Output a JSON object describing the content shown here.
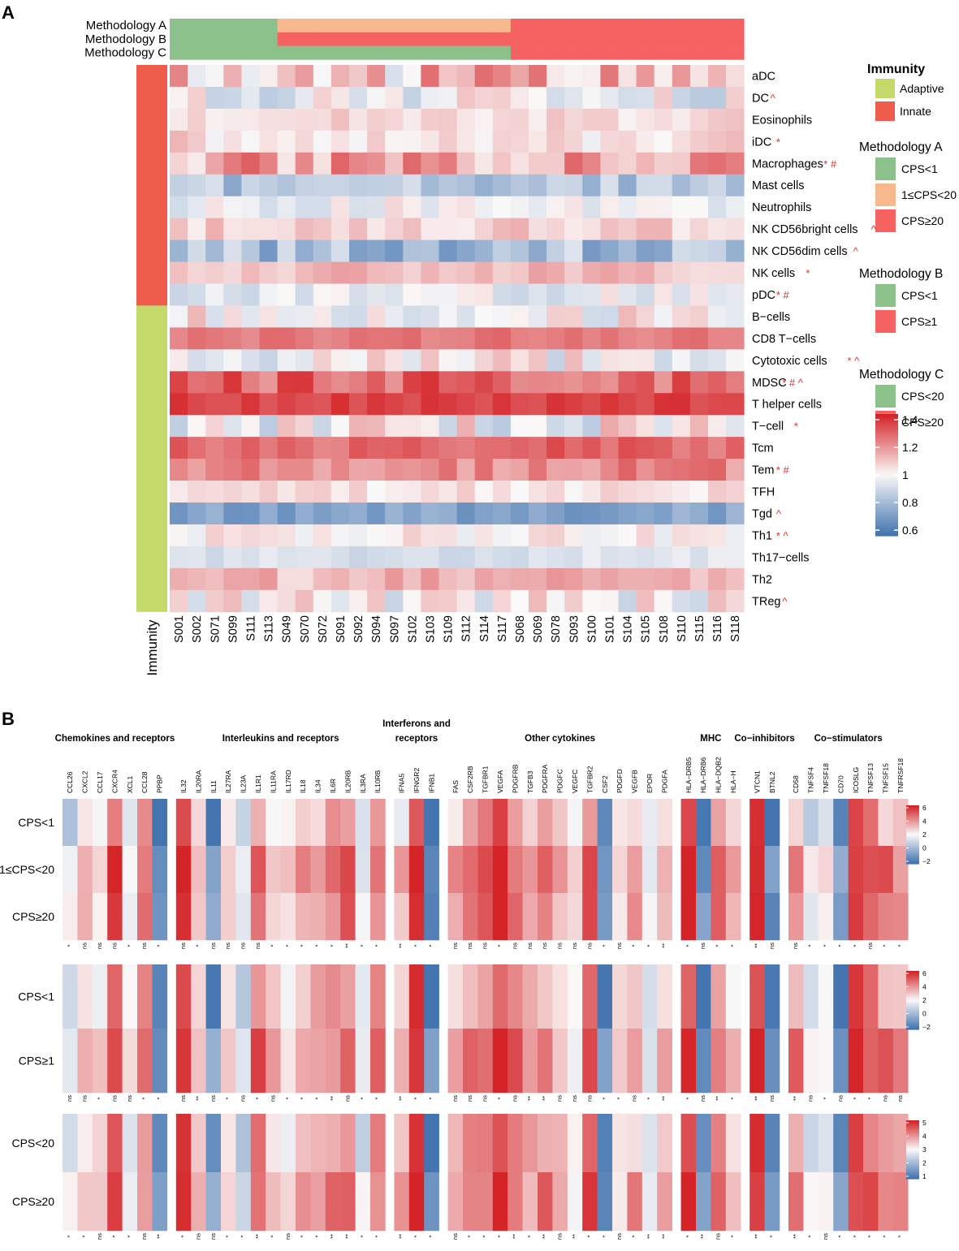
{
  "chart_data": [
    {
      "panel": "A",
      "type": "heatmap",
      "samples": [
        "S001",
        "S002",
        "S071",
        "S099",
        "S111",
        "S113",
        "S049",
        "S070",
        "S072",
        "S091",
        "S092",
        "S094",
        "S097",
        "S102",
        "S103",
        "S109",
        "S112",
        "S114",
        "S117",
        "S068",
        "S069",
        "S078",
        "S093",
        "S100",
        "S101",
        "S104",
        "S105",
        "S108",
        "S110",
        "S115",
        "S116",
        "S118"
      ],
      "annotation_rows": [
        {
          "label": "Methodology A",
          "values": [
            "CPS<1",
            "CPS<1",
            "CPS<1",
            "CPS<1",
            "CPS<1",
            "CPS<1",
            "1≤CPS<20",
            "1≤CPS<20",
            "1≤CPS<20",
            "1≤CPS<20",
            "1≤CPS<20",
            "1≤CPS<20",
            "1≤CPS<20",
            "1≤CPS<20",
            "1≤CPS<20",
            "1≤CPS<20",
            "1≤CPS<20",
            "1≤CPS<20",
            "1≤CPS<20",
            "CPS≥20",
            "CPS≥20",
            "CPS≥20",
            "CPS≥20",
            "CPS≥20",
            "CPS≥20",
            "CPS≥20",
            "CPS≥20",
            "CPS≥20",
            "CPS≥20",
            "CPS≥20",
            "CPS≥20",
            "CPS≥20"
          ]
        },
        {
          "label": "Methodology B",
          "values": [
            "CPS<1",
            "CPS<1",
            "CPS<1",
            "CPS<1",
            "CPS<1",
            "CPS<1",
            "CPS≥1",
            "CPS≥1",
            "CPS≥1",
            "CPS≥1",
            "CPS≥1",
            "CPS≥1",
            "CPS≥1",
            "CPS≥1",
            "CPS≥1",
            "CPS≥1",
            "CPS≥1",
            "CPS≥1",
            "CPS≥1",
            "CPS≥1",
            "CPS≥1",
            "CPS≥1",
            "CPS≥1",
            "CPS≥1",
            "CPS≥1",
            "CPS≥1",
            "CPS≥1",
            "CPS≥1",
            "CPS≥1",
            "CPS≥1",
            "CPS≥1",
            "CPS≥1"
          ]
        },
        {
          "label": "Methodology C",
          "values": [
            "CPS<20",
            "CPS<20",
            "CPS<20",
            "CPS<20",
            "CPS<20",
            "CPS<20",
            "CPS<20",
            "CPS<20",
            "CPS<20",
            "CPS<20",
            "CPS<20",
            "CPS<20",
            "CPS<20",
            "CPS<20",
            "CPS<20",
            "CPS<20",
            "CPS<20",
            "CPS<20",
            "CPS<20",
            "CPS≥20",
            "CPS≥20",
            "CPS≥20",
            "CPS≥20",
            "CPS≥20",
            "CPS≥20",
            "CPS≥20",
            "CPS≥20",
            "CPS≥20",
            "CPS≥20",
            "CPS≥20",
            "CPS≥20",
            "CPS≥20"
          ]
        }
      ],
      "immunity_label": "Immunity",
      "rows": [
        {
          "name": "aDC",
          "immunity": "Innate",
          "marks": "",
          "base": 1.08,
          "amp": 0.18
        },
        {
          "name": "DC",
          "immunity": "Innate",
          "marks": "^",
          "base": 0.98,
          "amp": 0.12
        },
        {
          "name": "Eosinophils",
          "immunity": "Innate",
          "marks": "",
          "base": 1.06,
          "amp": 0.05
        },
        {
          "name": "iDC",
          "immunity": "Innate",
          "marks": "*",
          "base": 1.05,
          "amp": 0.08
        },
        {
          "name": "Macrophages",
          "immunity": "Innate",
          "marks": "* #",
          "base": 1.14,
          "amp": 0.15
        },
        {
          "name": "Mast cells",
          "immunity": "Innate",
          "marks": "",
          "base": 0.84,
          "amp": 0.09
        },
        {
          "name": "Neutrophils",
          "immunity": "Innate",
          "marks": "",
          "base": 0.99,
          "amp": 0.08
        },
        {
          "name": "NK CD56bright cells",
          "immunity": "Innate",
          "marks": "^",
          "base": 1.08,
          "amp": 0.06
        },
        {
          "name": "NK CD56dim cells",
          "immunity": "Innate",
          "marks": "^",
          "base": 0.82,
          "amp": 0.12
        },
        {
          "name": "NK cells",
          "immunity": "Innate",
          "marks": "*",
          "base": 1.11,
          "amp": 0.06
        },
        {
          "name": "pDC",
          "immunity": "Innate",
          "marks": "* #",
          "base": 0.97,
          "amp": 0.08
        },
        {
          "name": "B−cells",
          "immunity": "Adaptive",
          "marks": "",
          "base": 1.02,
          "amp": 0.12
        },
        {
          "name": "CD8 T−cells",
          "immunity": "Adaptive",
          "marks": "",
          "base": 1.24,
          "amp": 0.04
        },
        {
          "name": "Cytotoxic cells",
          "immunity": "Adaptive",
          "marks": "* ^",
          "base": 1.0,
          "amp": 0.12
        },
        {
          "name": "MDSC",
          "immunity": "Adaptive",
          "marks": "* # ^",
          "base": 1.27,
          "amp": 0.1
        },
        {
          "name": "T helper cells",
          "immunity": "Adaptive",
          "marks": "",
          "base": 1.34,
          "amp": 0.04
        },
        {
          "name": "T−cell",
          "immunity": "Adaptive",
          "marks": "*",
          "base": 1.0,
          "amp": 0.15
        },
        {
          "name": "Tcm",
          "immunity": "Adaptive",
          "marks": "",
          "base": 1.27,
          "amp": 0.06
        },
        {
          "name": "Tem",
          "immunity": "Adaptive",
          "marks": "* #",
          "base": 1.21,
          "amp": 0.07
        },
        {
          "name": "TFH",
          "immunity": "Adaptive",
          "marks": "",
          "base": 1.04,
          "amp": 0.05
        },
        {
          "name": "Tgd",
          "immunity": "Adaptive",
          "marks": "^",
          "base": 0.74,
          "amp": 0.06
        },
        {
          "name": "Th1",
          "immunity": "Adaptive",
          "marks": "* ^",
          "base": 1.02,
          "amp": 0.06
        },
        {
          "name": "Th17−cells",
          "immunity": "Adaptive",
          "marks": "",
          "base": 0.93,
          "amp": 0.04
        },
        {
          "name": "Th2",
          "immunity": "Adaptive",
          "marks": "",
          "base": 1.12,
          "amp": 0.07
        },
        {
          "name": "TReg",
          "immunity": "Adaptive",
          "marks": "^",
          "base": 0.99,
          "amp": 0.13
        }
      ],
      "value_range": [
        0.6,
        1.4
      ],
      "legend": {
        "immunity_title": "Immunity",
        "immunity_items": [
          {
            "label": "Adaptive",
            "color": "#c3da6a"
          },
          {
            "label": "Innate",
            "color": "#ee5c4b"
          }
        ],
        "groups": [
          {
            "title": "Methodology A",
            "items": [
              {
                "label": "CPS<1",
                "color": "#8cc18c"
              },
              {
                "label": "1≤CPS<20",
                "color": "#f8b88d"
              },
              {
                "label": "CPS≥20",
                "color": "#f56262"
              }
            ]
          },
          {
            "title": "Methodology B",
            "items": [
              {
                "label": "CPS<1",
                "color": "#8cc18c"
              },
              {
                "label": "CPS≥1",
                "color": "#f56262"
              }
            ]
          },
          {
            "title": "Methodology C",
            "items": [
              {
                "label": "CPS<20",
                "color": "#8cc18c"
              },
              {
                "label": "CPS≥20",
                "color": "#f56262"
              }
            ]
          }
        ],
        "color_ticks": [
          "1.4",
          "1.2",
          "1",
          "0.8",
          "0.6"
        ]
      }
    },
    {
      "panel": "B",
      "type": "heatmap",
      "categories": [
        {
          "label": [
            "Chemokines and receptors"
          ],
          "genes": [
            "CCL26",
            "CXCL2",
            "CCL17",
            "CXCR4",
            "XCL1",
            "CCL28",
            "PPBP"
          ]
        },
        {
          "label": [
            "Interleukins and receptors"
          ],
          "genes": [
            "IL32",
            "IL20RA",
            "IL11",
            "IL27RA",
            "IL23A",
            "IL1R1",
            "IL11RA",
            "IL17RD",
            "IL18",
            "IL34",
            "IL6R",
            "IL20RB",
            "IL3RA",
            "IL10RB"
          ]
        },
        {
          "label": [
            "Interferons and",
            "receptors"
          ],
          "genes": [
            "IFNA5",
            "IFNGR2",
            "IFNB1"
          ]
        },
        {
          "label": [
            "Other cytokines"
          ],
          "genes": [
            "FAS",
            "CSF2RB",
            "TGFBR1",
            "VEGFA",
            "PDGFRB",
            "TGFB3",
            "PDGFRA",
            "PDGFC",
            "VEGFC",
            "TGFBR2",
            "CSF2",
            "PDGFD",
            "VEGFB",
            "EPOR",
            "PDGFA"
          ]
        },
        {
          "label": [
            "MHC"
          ],
          "genes": [
            "HLA−DRB5",
            "HLA−DRB6",
            "HLA−DQB2",
            "HLA−H"
          ]
        },
        {
          "label": [
            "Co−inhibitors"
          ],
          "genes": [
            "VTCN1",
            "BTNL2"
          ]
        },
        {
          "label": [
            "Co−stimulators"
          ],
          "genes": [
            "CD58",
            "TNFSF4",
            "TNFSF18",
            "CD70",
            "ICOSLG",
            "TNFSF13",
            "TNFSF15",
            "TNFRSF18"
          ]
        }
      ],
      "gene_base": [
        1.5,
        3,
        2.5,
        5.2,
        2,
        4,
        -1.5,
        5.5,
        3,
        -1,
        2.5,
        1,
        4.5,
        3,
        2.5,
        3.5,
        3.5,
        4,
        4.5,
        1.5,
        4,
        3,
        5.8,
        -1.5,
        3.5,
        4,
        4.5,
        5.8,
        4.5,
        3.5,
        4,
        3,
        2,
        5,
        -1.5,
        2.5,
        3.5,
        1.5,
        3,
        5.8,
        -1.2,
        4.5,
        3,
        5.8,
        -1.5,
        4,
        1.5,
        2,
        -1.3,
        5.5,
        5,
        4,
        3.5
      ],
      "heatmaps": [
        {
          "row_labels": [
            "CPS<1",
            "1≤CPS<20",
            "CPS≥20"
          ],
          "row_shift": [
            -0.6,
            0.5,
            0.1
          ],
          "value_range": [
            -2,
            6
          ],
          "legend_ticks": [
            "6",
            "4",
            "2",
            "0",
            "−2"
          ],
          "significance": [
            "*",
            "ns",
            "ns",
            "ns",
            "*",
            "ns",
            "*",
            "ns",
            "*",
            "ns",
            "ns",
            "ns",
            "ns",
            "*",
            "*",
            "*",
            "*",
            "*",
            "**",
            "*",
            "*",
            "**",
            "*",
            "*",
            "ns",
            "ns",
            "ns",
            "*",
            "ns",
            "ns",
            "ns",
            "ns",
            "ns",
            "ns",
            "*",
            "ns",
            "*",
            "*",
            "**",
            "*",
            "ns",
            "*",
            "*",
            "**",
            "ns",
            "ns",
            "*",
            "*",
            "*",
            "*",
            "ns",
            "*",
            "*"
          ]
        },
        {
          "row_labels": [
            "CPS<1",
            "CPS≥1"
          ],
          "row_shift": [
            -0.4,
            0.4
          ],
          "value_range": [
            -2,
            6
          ],
          "legend_ticks": [
            "6",
            "4",
            "2",
            "0",
            "−2"
          ],
          "significance": [
            "ns",
            "ns",
            "*",
            "ns",
            "ns",
            "*",
            "*",
            "ns",
            "**",
            "ns",
            "*",
            "ns",
            "*",
            "ns",
            "*",
            "*",
            "*",
            "**",
            "ns",
            "*",
            "*",
            "**",
            "*",
            "*",
            "ns",
            "ns",
            "ns",
            "*",
            "ns",
            "**",
            "**",
            "ns",
            "ns",
            "ns",
            "*",
            "*",
            "ns",
            "*",
            "**",
            "*",
            "ns",
            "**",
            "*",
            "**",
            "ns",
            "**",
            "ns",
            "*",
            "ns",
            "*",
            "*",
            "ns",
            "ns"
          ]
        },
        {
          "row_labels": [
            "CPS<20",
            "CPS≥20"
          ],
          "row_shift": [
            -0.3,
            0.3
          ],
          "value_range": [
            1,
            5
          ],
          "legend_ticks": [
            "5",
            "4",
            "3",
            "2",
            "1"
          ],
          "significance": [
            "*",
            "*",
            "ns",
            "*",
            "*",
            "ns",
            "**",
            "*",
            "ns",
            "ns",
            "*",
            "*",
            "**",
            "*",
            "ns",
            "*",
            "*",
            "**",
            "**",
            "*",
            "*",
            "**",
            "*",
            "*",
            "ns",
            "*",
            "*",
            "*",
            "**",
            "*",
            "**",
            "ns",
            "**",
            "*",
            "*",
            "ns",
            "*",
            "**",
            "**",
            "*",
            "**",
            "ns",
            "*",
            "**",
            "*",
            "**",
            "*",
            "ns",
            "*",
            "*",
            "*",
            "*",
            "*"
          ]
        }
      ]
    }
  ],
  "panel_labels": {
    "a": "A",
    "b": "B"
  }
}
